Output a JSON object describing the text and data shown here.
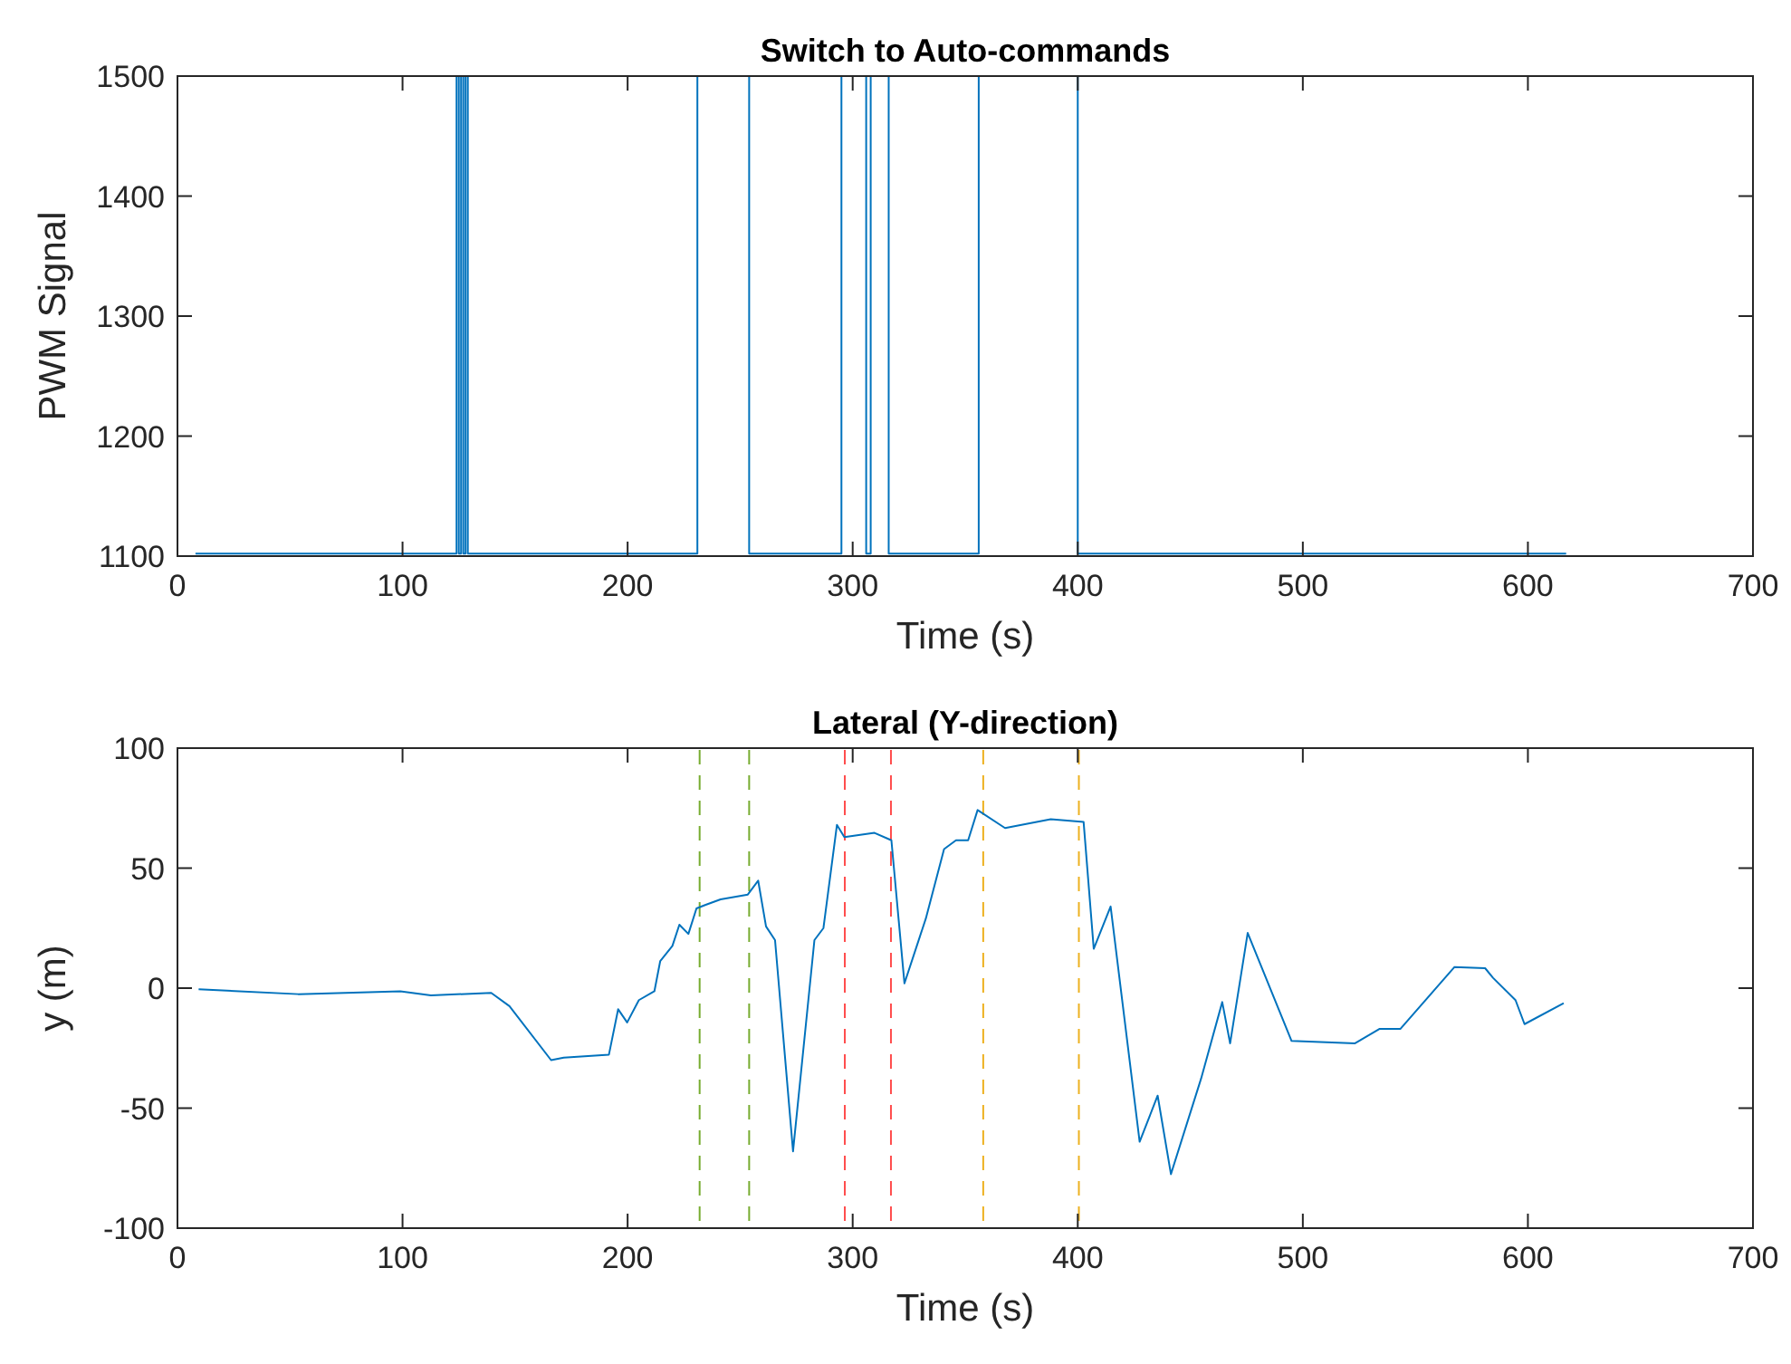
{
  "chart_data": [
    {
      "type": "line",
      "title": "Switch to Auto-commands",
      "xlabel": "Time (s)",
      "ylabel": "PWM Signal",
      "xlim": [
        0,
        700
      ],
      "xticks": [
        0,
        100,
        200,
        300,
        400,
        500,
        600,
        700
      ],
      "ylim": [
        1100,
        1500
      ],
      "yticks": [
        1100,
        1200,
        1300,
        1400,
        1500
      ],
      "grid": false,
      "series": [
        {
          "color": "#0072bd",
          "x": [
            8,
            124,
            124,
            125,
            125,
            126,
            126,
            127,
            127,
            128,
            128,
            129,
            129,
            231,
            231,
            254,
            254,
            295,
            295,
            306,
            306,
            308,
            308,
            316,
            316,
            356,
            356,
            400,
            400,
            617
          ],
          "values": [
            1102,
            1102,
            1500,
            1500,
            1102,
            1102,
            1500,
            1500,
            1102,
            1102,
            1500,
            1500,
            1102,
            1102,
            1500,
            1500,
            1102,
            1102,
            1500,
            1500,
            1102,
            1102,
            1500,
            1500,
            1102,
            1102,
            1500,
            1500,
            1102,
            1102
          ]
        }
      ]
    },
    {
      "type": "line",
      "title": "Lateral (Y-direction)",
      "xlabel": "Time (s)",
      "ylabel": "y (m)",
      "xlim": [
        0,
        700
      ],
      "xticks": [
        0,
        100,
        200,
        300,
        400,
        500,
        600,
        700
      ],
      "ylim": [
        -100,
        100
      ],
      "yticks": [
        -100,
        -50,
        0,
        50,
        100
      ],
      "grid": false,
      "series": [
        {
          "color": "#0072bd",
          "x": [
            9.4,
            53.6,
            99,
            112.6,
            139.4,
            147.5,
            166,
            171.6,
            191.7,
            195.8,
            199.8,
            205,
            211.9,
            214.5,
            219.9,
            223,
            227,
            230.6,
            234.7,
            241.3,
            253.4,
            258,
            261.5,
            265.5,
            273.5,
            283,
            287,
            293,
            296.3,
            309.7,
            317.2,
            323,
            332.5,
            340.6,
            345.9,
            351.3,
            355.5,
            367.7,
            388,
            402.6,
            407.1,
            414.6,
            427.5,
            435.5,
            441.4,
            454.8,
            464.2,
            467.7,
            475.5,
            495,
            523.2,
            534,
            543.3,
            567.4,
            581,
            584.5,
            594.5,
            598.5,
            615.9
          ],
          "values": [
            -0.5,
            -2.5,
            -1.3,
            -3,
            -2,
            -7.5,
            -30,
            -29,
            -27.7,
            -8.8,
            -14.3,
            -5,
            -1.3,
            11.3,
            17.6,
            26.4,
            22.6,
            33.2,
            34.7,
            37,
            39,
            44.8,
            25.7,
            20,
            -68,
            20,
            25,
            68,
            62.9,
            64.7,
            61.6,
            2,
            29,
            57.9,
            61.6,
            61.6,
            74.2,
            66.7,
            70.4,
            69.2,
            16.4,
            34,
            -64,
            -44.8,
            -77.5,
            -37.7,
            -5.8,
            -23,
            23,
            -22,
            -23,
            -17,
            -17,
            8.8,
            8.3,
            4.3,
            -5,
            -15,
            -6.3
          ]
        }
      ],
      "ref_lines": [
        {
          "axis": "x",
          "value": 232,
          "color": "#77ac30",
          "line_style": "dashed"
        },
        {
          "axis": "x",
          "value": 254,
          "color": "#77ac30",
          "line_style": "dashed"
        },
        {
          "axis": "x",
          "value": 296.5,
          "color": "#ff4d4d",
          "line_style": "dashed"
        },
        {
          "axis": "x",
          "value": 317,
          "color": "#ff4d4d",
          "line_style": "dashed"
        },
        {
          "axis": "x",
          "value": 358,
          "color": "#edb120",
          "line_style": "dashed"
        },
        {
          "axis": "x",
          "value": 400.5,
          "color": "#edb120",
          "line_style": "dashed"
        }
      ]
    }
  ]
}
